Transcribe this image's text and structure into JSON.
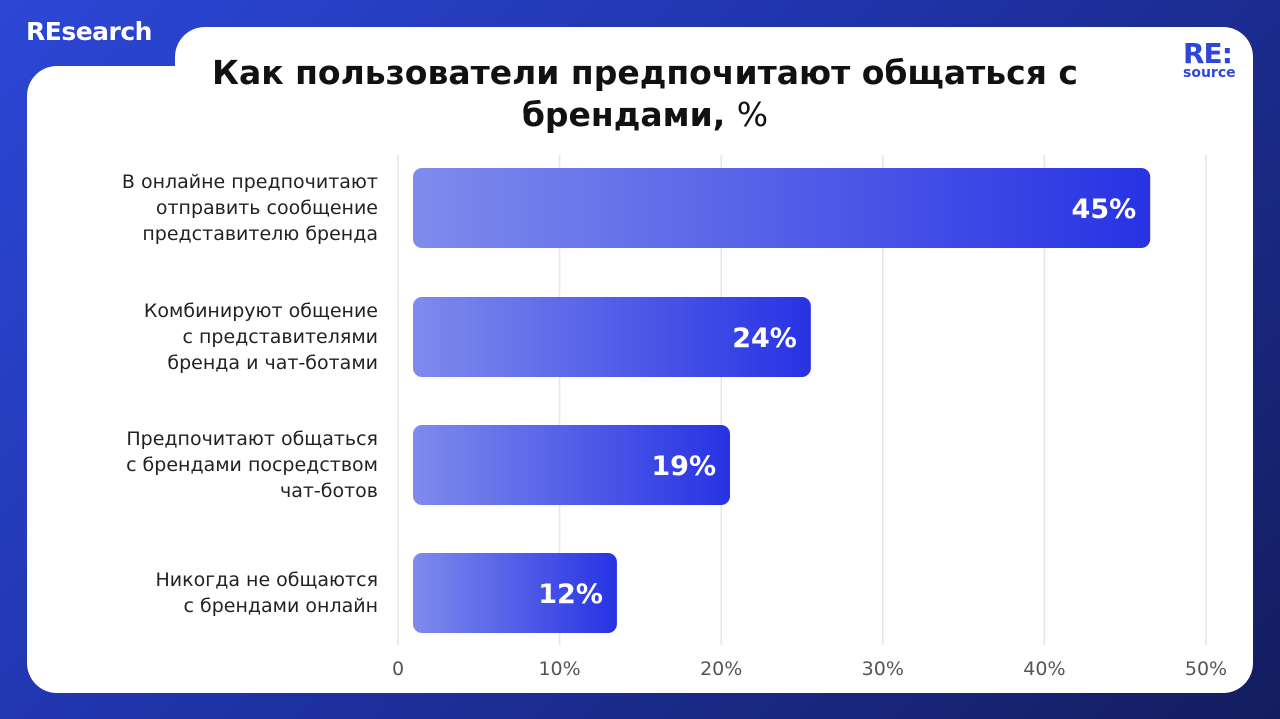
{
  "brand": "REsearch",
  "logo": {
    "top": "RE:",
    "bottom": "source"
  },
  "chart_data": {
    "type": "bar",
    "orientation": "horizontal",
    "title": "Как пользователи предпочитают общаться с брендами,",
    "title_unit": "%",
    "categories": [
      "В онлайне предпочитают отправить сообщение представителю бренда",
      "Комбинируют общение с представителями бренда и чат-ботами",
      "Предпочитают общаться с брендами посредством чат-ботов",
      "Никогда не общаются с брендами онлайн"
    ],
    "category_lines": [
      [
        "В онлайне предпочитают",
        "отправить сообщение",
        "представителю бренда"
      ],
      [
        "Комбинируют общение",
        "с представителями",
        "бренда и чат-ботами"
      ],
      [
        "Предпочитают общаться",
        "с брендами посредством",
        "чат-ботов"
      ],
      [
        "Никогда не общаются",
        "с брендами онлайн"
      ]
    ],
    "values": [
      45,
      24,
      19,
      12
    ],
    "data_labels": [
      "45%",
      "24%",
      "19%",
      "12%"
    ],
    "xlim": [
      0,
      50
    ],
    "xticks": [
      0,
      10,
      20,
      30,
      40,
      50
    ],
    "xtick_labels": [
      "0",
      "10%",
      "20%",
      "30%",
      "40%",
      "50%"
    ],
    "grid": true,
    "colors": {
      "bar_start": "#7f8bec",
      "bar_end": "#2733e3",
      "grid": "#e6e6e6",
      "tick": "#555555"
    }
  }
}
